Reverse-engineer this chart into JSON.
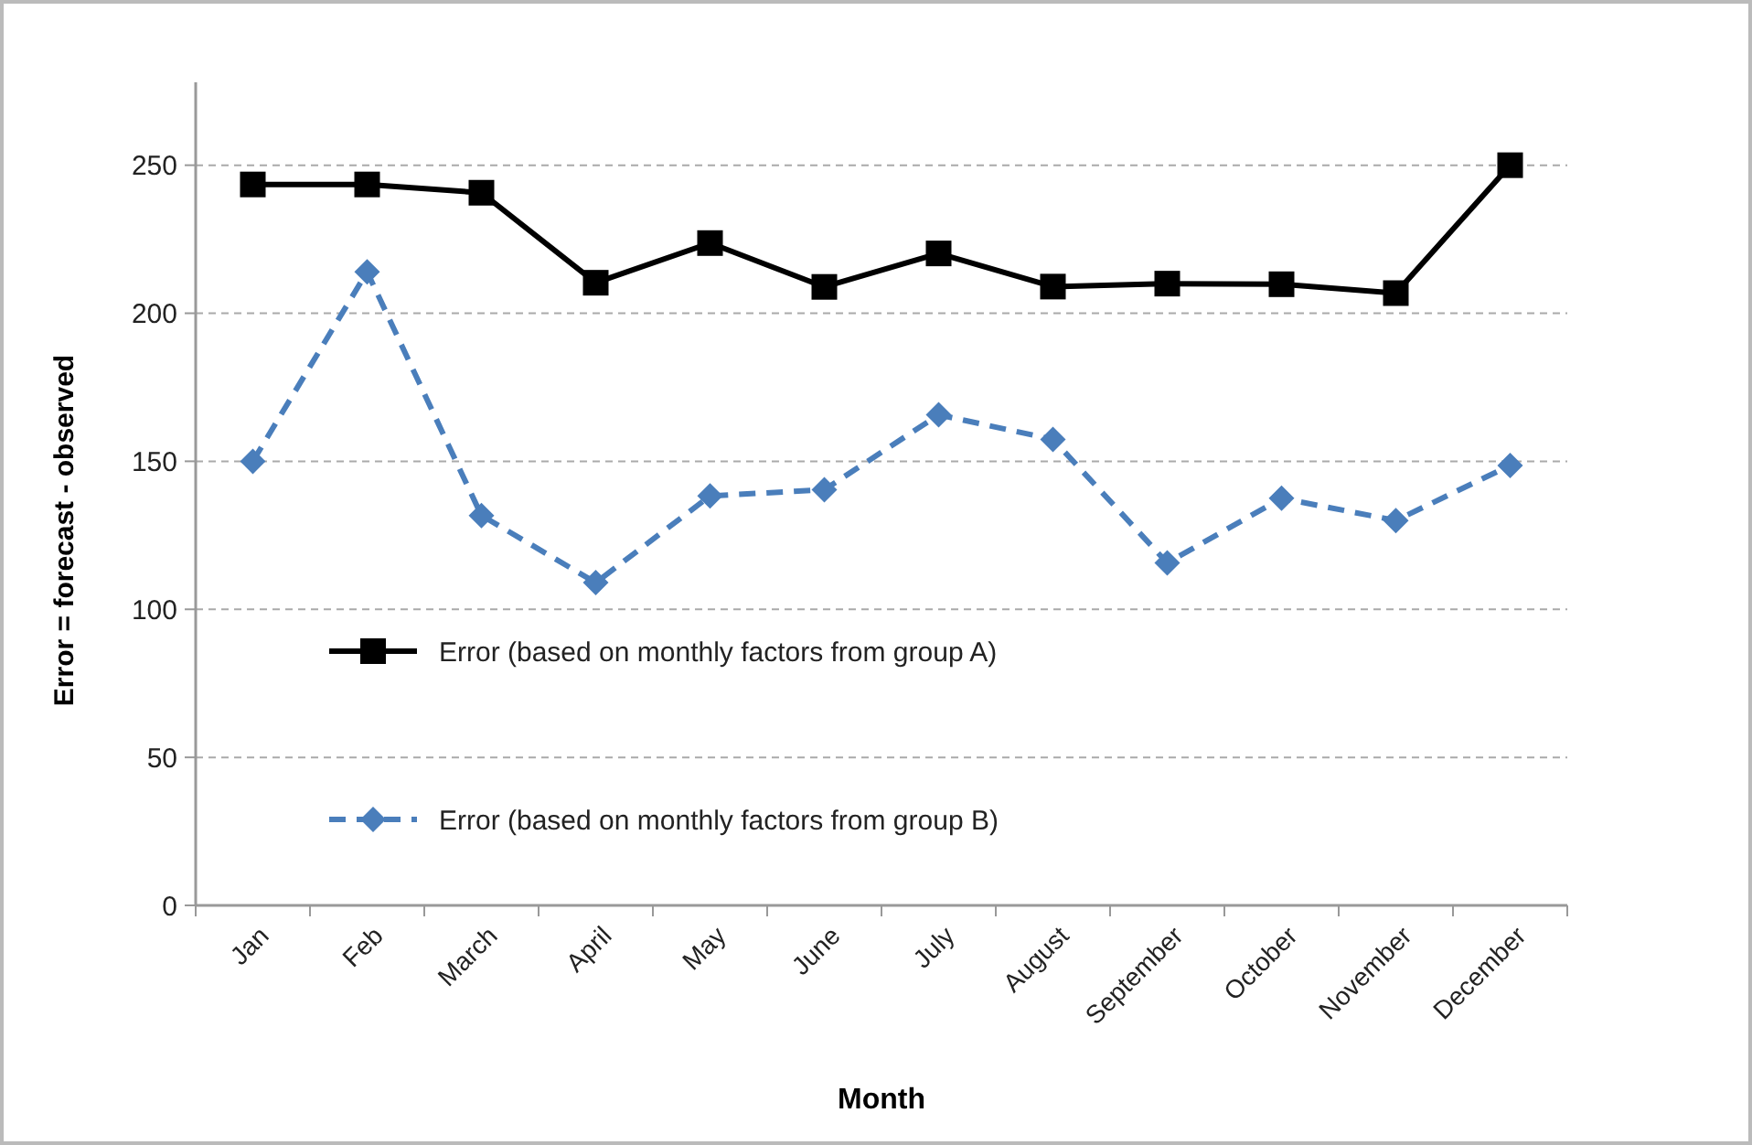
{
  "chart_data": {
    "type": "line",
    "xlabel": "Month",
    "ylabel": "Error = forecast - observed",
    "categories": [
      "Jan",
      "Feb",
      "March",
      "April",
      "May",
      "June",
      "July",
      "August",
      "September",
      "October",
      "November",
      "December"
    ],
    "series": [
      {
        "name": "Error (based on monthly factors from group A)",
        "color": "#000000",
        "marker": "square",
        "line_style": "solid",
        "values": [
          243.5,
          243.5,
          240.7,
          210.3,
          223.7,
          208.9,
          220.2,
          209,
          210,
          209.8,
          206.8,
          250
        ]
      },
      {
        "name": "Error (based on monthly factors from group B)",
        "color": "#4a7ebb",
        "marker": "diamond",
        "line_style": "dashed",
        "values": [
          150,
          214,
          131.7,
          109,
          138.3,
          140.4,
          165.7,
          157.4,
          115.7,
          137.5,
          130,
          148.6
        ]
      }
    ],
    "ylim": [
      0,
      278
    ],
    "yticks": [
      0,
      50,
      100,
      150,
      200,
      250
    ],
    "grid": "y",
    "legend": "left"
  }
}
